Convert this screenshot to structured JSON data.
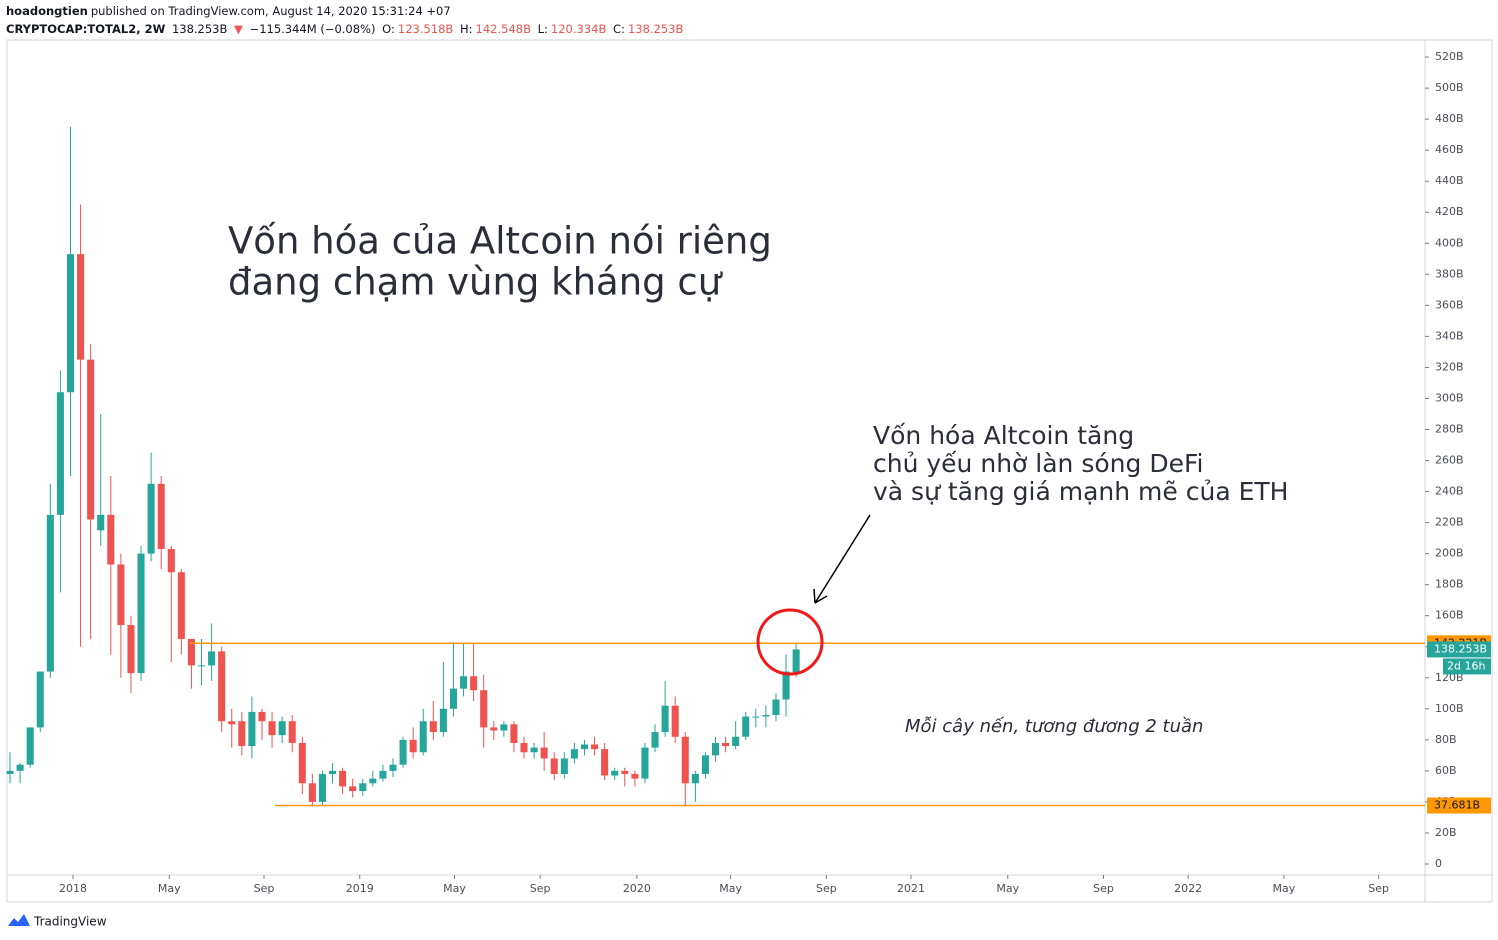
{
  "chart_data": {
    "type": "candlestick",
    "header": {
      "publisher": "hoadongtien",
      "published": "published on TradingView.com, August 14, 2020 15:31:24 +07",
      "symbol": "CRYPTOCAP:TOTAL2, 2W",
      "last": "138.253B",
      "arrow": "▼",
      "change": "−115.344M (−0.08%)",
      "o_label": "O:",
      "o": "123.518B",
      "h_label": "H:",
      "h": "142.548B",
      "l_label": "L:",
      "l": "120.334B",
      "c_label": "C:",
      "c": "138.253B"
    },
    "title_lines": [
      "Vốn hóa của Altcoin nói riêng",
      "đang chạm vùng kháng cự"
    ],
    "note_lines": [
      "Vốn hóa Altcoin tăng",
      "chủ yếu nhờ làn sóng DeFi",
      "và sự tăng giá mạnh mẽ của ETH"
    ],
    "candle_note": "Mỗi cây nến, tương đương 2 tuần",
    "up_color": "#26a69a",
    "down_color": "#ef5350",
    "open": [
      58,
      60,
      64,
      88,
      124,
      225,
      304,
      393,
      325,
      215,
      225,
      193,
      154,
      123,
      200,
      245,
      203,
      188,
      145,
      128,
      128,
      137,
      92,
      92,
      76,
      98,
      92,
      83,
      92,
      78,
      52,
      40,
      58,
      60,
      50,
      47,
      52,
      55,
      60,
      64,
      80,
      72,
      92,
      85,
      100,
      113,
      121,
      112,
      88,
      86,
      90,
      78,
      72,
      75,
      68,
      58,
      68,
      74,
      77,
      74,
      57,
      60,
      58,
      55,
      75,
      85,
      102,
      82,
      52,
      58,
      70,
      78,
      76,
      82,
      95,
      95,
      96,
      106,
      123.518
    ],
    "high": [
      72,
      65,
      88,
      123,
      245,
      318,
      475,
      425,
      335,
      290,
      250,
      200,
      160,
      205,
      265,
      250,
      205,
      190,
      145,
      145,
      155,
      140,
      100,
      98,
      108,
      100,
      98,
      95,
      96,
      82,
      58,
      60,
      65,
      62,
      55,
      55,
      60,
      64,
      68,
      82,
      88,
      100,
      105,
      130,
      143,
      142,
      142,
      122,
      92,
      92,
      92,
      82,
      78,
      85,
      72,
      72,
      78,
      80,
      82,
      78,
      62,
      62,
      60,
      78,
      90,
      118,
      108,
      85,
      60,
      72,
      82,
      82,
      92,
      98,
      100,
      102,
      110,
      135,
      142.548
    ],
    "low": [
      52,
      52,
      62,
      85,
      120,
      175,
      250,
      140,
      145,
      205,
      135,
      120,
      110,
      118,
      195,
      190,
      130,
      135,
      113,
      115,
      118,
      85,
      75,
      70,
      68,
      80,
      75,
      78,
      72,
      45,
      37,
      38,
      52,
      45,
      43,
      44,
      50,
      53,
      56,
      62,
      68,
      70,
      80,
      82,
      95,
      108,
      105,
      75,
      80,
      82,
      72,
      68,
      68,
      60,
      54,
      55,
      65,
      70,
      70,
      54,
      54,
      50,
      50,
      52,
      72,
      82,
      78,
      37,
      40,
      55,
      66,
      72,
      74,
      80,
      88,
      88,
      92,
      95,
      120.334
    ],
    "close": [
      60,
      64,
      88,
      124,
      225,
      304,
      393,
      325,
      222,
      225,
      193,
      154,
      123,
      200,
      245,
      203,
      188,
      145,
      128,
      128,
      137,
      92,
      90,
      76,
      98,
      92,
      83,
      92,
      78,
      52,
      40,
      58,
      60,
      50,
      47,
      52,
      55,
      60,
      64,
      80,
      72,
      92,
      85,
      100,
      113,
      121,
      112,
      88,
      86,
      90,
      78,
      72,
      75,
      68,
      58,
      68,
      74,
      77,
      74,
      57,
      60,
      58,
      55,
      75,
      85,
      102,
      82,
      52,
      58,
      70,
      78,
      76,
      82,
      95,
      95,
      96,
      106,
      124,
      138.253
    ],
    "xlim": [
      -0.3,
      140.4
    ],
    "xticks": [
      {
        "value": 6.25,
        "label": "2018"
      },
      {
        "value": 15.8,
        "label": "May"
      },
      {
        "value": 25.2,
        "label": "Sep"
      },
      {
        "value": 34.7,
        "label": "2019"
      },
      {
        "value": 44.1,
        "label": "May"
      },
      {
        "value": 52.6,
        "label": "Sep"
      },
      {
        "value": 62.2,
        "label": "2020"
      },
      {
        "value": 71.5,
        "label": "May"
      },
      {
        "value": 81.0,
        "label": "Sep"
      },
      {
        "value": 89.4,
        "label": "2021"
      },
      {
        "value": 99.0,
        "label": "May"
      },
      {
        "value": 108.5,
        "label": "Sep"
      },
      {
        "value": 116.9,
        "label": "2022"
      },
      {
        "value": 126.4,
        "label": "May"
      },
      {
        "value": 135.8,
        "label": "Sep"
      }
    ],
    "ylim": [
      -7.1,
      531
    ],
    "yticks": [
      0,
      {
        "value": 20,
        "label": "20B"
      },
      {
        "value": 40,
        "label": "40B"
      },
      {
        "value": 60,
        "label": "60B"
      },
      {
        "value": 80,
        "label": "80B"
      },
      {
        "value": 100,
        "label": "100B"
      },
      {
        "value": 120,
        "label": "120B"
      },
      {
        "value": 140,
        "label": "140B"
      },
      {
        "value": 160,
        "label": "160B"
      },
      {
        "value": 180,
        "label": "180B"
      },
      {
        "value": 200,
        "label": "200B"
      },
      {
        "value": 220,
        "label": "220B"
      },
      {
        "value": 240,
        "label": "240B"
      },
      {
        "value": 260,
        "label": "260B"
      },
      {
        "value": 280,
        "label": "280B"
      },
      {
        "value": 300,
        "label": "300B"
      },
      {
        "value": 320,
        "label": "320B"
      },
      {
        "value": 340,
        "label": "340B"
      },
      {
        "value": 360,
        "label": "360B"
      },
      {
        "value": 380,
        "label": "380B"
      },
      {
        "value": 400,
        "label": "400B"
      },
      {
        "value": 420,
        "label": "420B"
      },
      {
        "value": 440,
        "label": "440B"
      },
      {
        "value": 460,
        "label": "460B"
      },
      {
        "value": 480,
        "label": "480B"
      },
      {
        "value": 500,
        "label": "500B"
      },
      {
        "value": 520,
        "label": "520B"
      }
    ],
    "hline_color": "#ff9800",
    "hlines": [
      {
        "value": 142.221,
        "label": "142.221B"
      },
      {
        "value": 37.681,
        "label": "37.681B"
      }
    ],
    "last_price": {
      "value": 138.253,
      "label": "138.253B"
    },
    "countdown": "2d 16h",
    "brand": "TradingView"
  }
}
